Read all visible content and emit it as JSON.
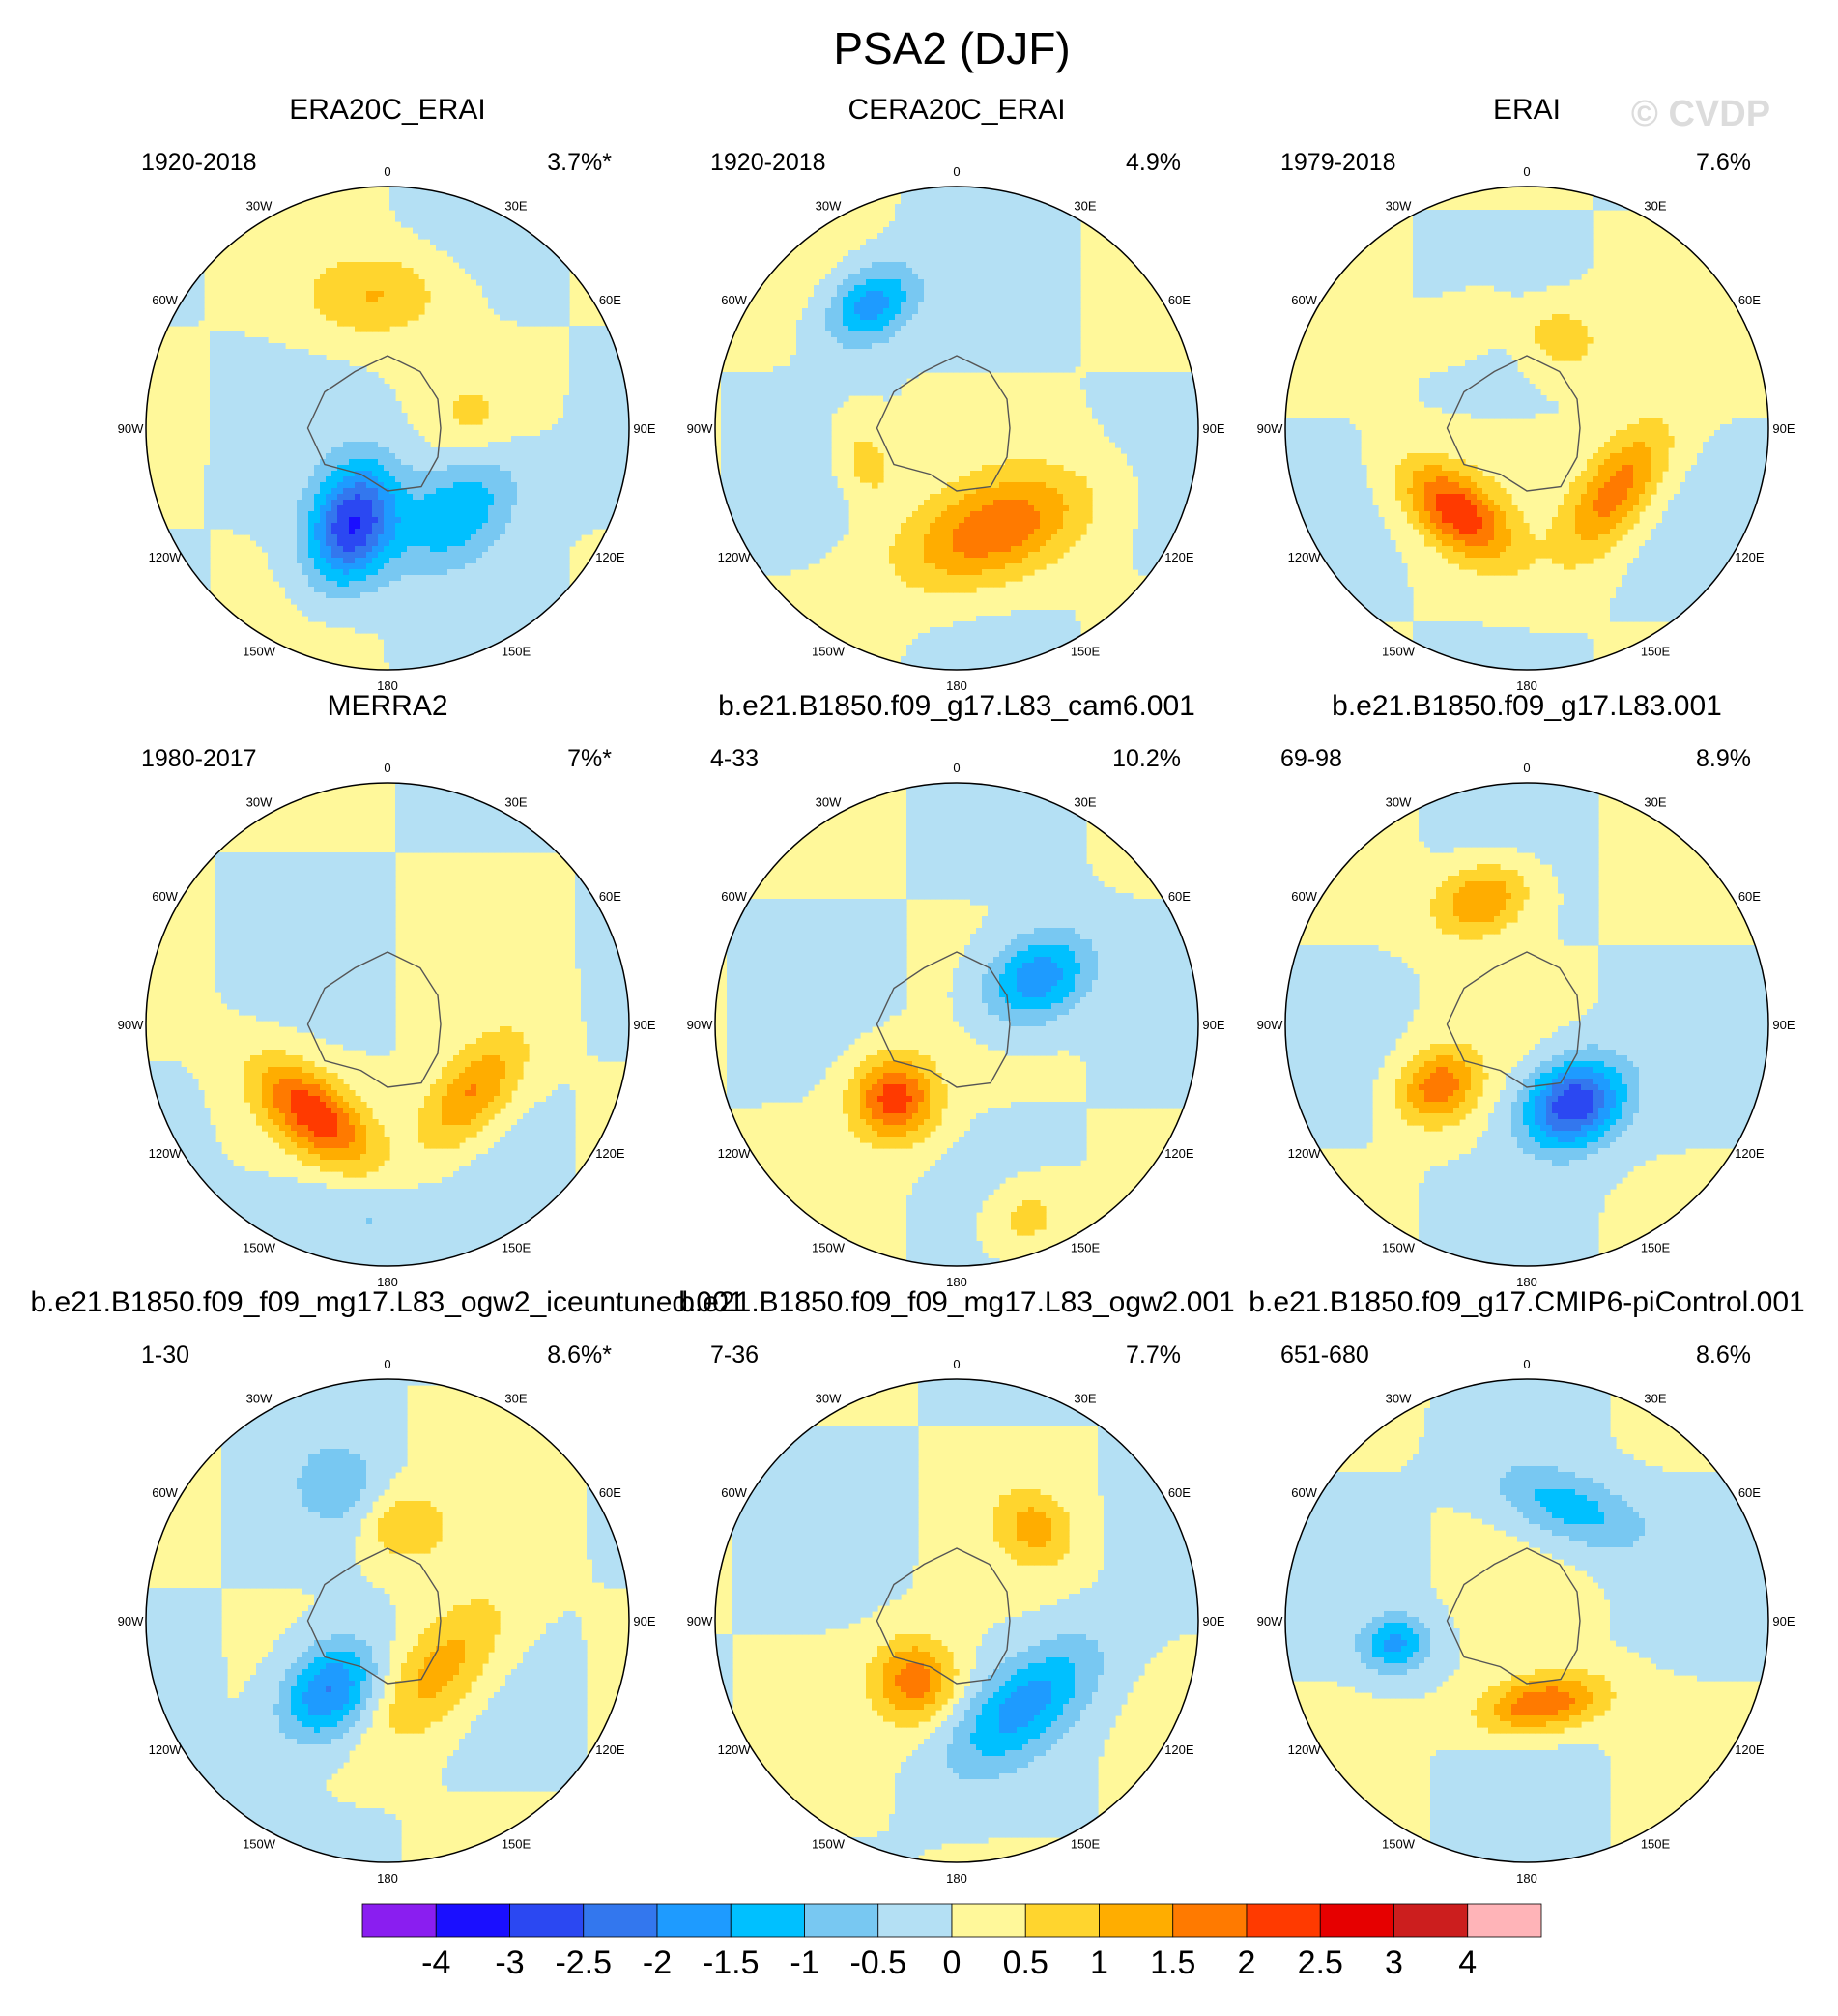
{
  "title": "PSA2 (DJF)",
  "watermark": "© CVDP",
  "lon_labels": [
    "0",
    "30E",
    "60E",
    "90E",
    "120E",
    "150E",
    "180",
    "150W",
    "120W",
    "90W",
    "60W",
    "30W"
  ],
  "panels": [
    {
      "name": "ERA20C_ERAI",
      "years": "1920-2018",
      "pct": "3.7%*",
      "blobs": [
        {
          "lon": 200,
          "colat": 0.42,
          "mag": -3.0,
          "sx": 0.12,
          "sy": 0.18
        },
        {
          "lon": 140,
          "colat": 0.45,
          "mag": -1.5,
          "sx": 0.2,
          "sy": 0.13
        },
        {
          "lon": 355,
          "colat": 0.55,
          "mag": 1.0,
          "sx": 0.2,
          "sy": 0.12
        },
        {
          "lon": 80,
          "colat": 0.35,
          "mag": 0.5,
          "sx": 0.1,
          "sy": 0.1
        }
      ]
    },
    {
      "name": "CERA20C_ERAI",
      "years": "1920-2018",
      "pct": "4.9%",
      "blobs": [
        {
          "lon": 325,
          "colat": 0.62,
          "mag": -1.8,
          "sx": 0.14,
          "sy": 0.1
        },
        {
          "lon": 160,
          "colat": 0.45,
          "mag": 1.8,
          "sx": 0.28,
          "sy": 0.14
        },
        {
          "lon": 250,
          "colat": 0.4,
          "mag": 0.8,
          "sx": 0.12,
          "sy": 0.08
        }
      ]
    },
    {
      "name": "ERAI",
      "years": "1979-2018",
      "pct": "7.6%",
      "blobs": [
        {
          "lon": 220,
          "colat": 0.45,
          "mag": 2.3,
          "sx": 0.18,
          "sy": 0.1
        },
        {
          "lon": 125,
          "colat": 0.45,
          "mag": 1.8,
          "sx": 0.22,
          "sy": 0.1
        },
        {
          "lon": 20,
          "colat": 0.4,
          "mag": 0.9,
          "sx": 0.12,
          "sy": 0.1
        },
        {
          "lon": 330,
          "colat": 0.5,
          "mag": 0.6,
          "sx": 0.12,
          "sy": 0.08
        }
      ]
    },
    {
      "name": "MERRA2",
      "years": "1980-2017",
      "pct": "7%*",
      "blobs": [
        {
          "lon": 220,
          "colat": 0.48,
          "mag": 2.3,
          "sx": 0.2,
          "sy": 0.1
        },
        {
          "lon": 130,
          "colat": 0.45,
          "mag": 1.6,
          "sx": 0.2,
          "sy": 0.1
        },
        {
          "lon": 190,
          "colat": 0.8,
          "mag": -0.6,
          "sx": 0.3,
          "sy": 0.1
        }
      ]
    },
    {
      "name": "b.e21.B1850.f09_g17.L83_cam6.001",
      "years": "4-33",
      "pct": "10.2%",
      "blobs": [
        {
          "lon": 60,
          "colat": 0.38,
          "mag": -2.0,
          "sx": 0.12,
          "sy": 0.16
        },
        {
          "lon": 220,
          "colat": 0.4,
          "mag": 2.3,
          "sx": 0.12,
          "sy": 0.12
        },
        {
          "lon": 160,
          "colat": 0.85,
          "mag": 0.8,
          "sx": 0.12,
          "sy": 0.1
        }
      ]
    },
    {
      "name": "b.e21.B1850.f09_g17.L83.001",
      "years": "69-98",
      "pct": "8.9%",
      "blobs": [
        {
          "lon": 340,
          "colat": 0.55,
          "mag": 1.6,
          "sx": 0.14,
          "sy": 0.1
        },
        {
          "lon": 150,
          "colat": 0.38,
          "mag": -3.0,
          "sx": 0.15,
          "sy": 0.12
        },
        {
          "lon": 235,
          "colat": 0.45,
          "mag": 1.8,
          "sx": 0.1,
          "sy": 0.12
        }
      ]
    },
    {
      "name": "b.e21.B1850.f09_f09_mg17.L83_ogw2_iceuntuned.001",
      "years": "1-30",
      "pct": "8.6%*",
      "blobs": [
        {
          "lon": 220,
          "colat": 0.38,
          "mag": -2.2,
          "sx": 0.12,
          "sy": 0.16
        },
        {
          "lon": 130,
          "colat": 0.3,
          "mag": 1.3,
          "sx": 0.25,
          "sy": 0.12
        },
        {
          "lon": 10,
          "colat": 0.4,
          "mag": 1.0,
          "sx": 0.12,
          "sy": 0.1
        },
        {
          "lon": 340,
          "colat": 0.6,
          "mag": -0.8,
          "sx": 0.12,
          "sy": 0.12
        }
      ]
    },
    {
      "name": "b.e21.B1850.f09_f09_mg17.L83_ogw2.001",
      "years": "7-36",
      "pct": "7.7%",
      "blobs": [
        {
          "lon": 215,
          "colat": 0.3,
          "mag": 1.8,
          "sx": 0.12,
          "sy": 0.12
        },
        {
          "lon": 140,
          "colat": 0.45,
          "mag": -1.6,
          "sx": 0.25,
          "sy": 0.12
        },
        {
          "lon": 40,
          "colat": 0.5,
          "mag": 1.1,
          "sx": 0.12,
          "sy": 0.1
        }
      ]
    },
    {
      "name": "b.e21.B1850.f09_g17.CMIP6-piControl.001",
      "years": "651-680",
      "pct": "8.6%",
      "blobs": [
        {
          "lon": 170,
          "colat": 0.35,
          "mag": 2.0,
          "sx": 0.18,
          "sy": 0.08
        },
        {
          "lon": 20,
          "colat": 0.5,
          "mag": -1.3,
          "sx": 0.22,
          "sy": 0.1
        },
        {
          "lon": 260,
          "colat": 0.55,
          "mag": -1.6,
          "sx": 0.08,
          "sy": 0.1
        }
      ]
    }
  ],
  "colorbar": {
    "colors": [
      "#8a1ef0",
      "#1a0fff",
      "#2b48f2",
      "#3377ee",
      "#1e9bff",
      "#00c0ff",
      "#78c8f2",
      "#b4e0f4",
      "#fff89a",
      "#ffd52e",
      "#ffad00",
      "#ff7a00",
      "#ff3a00",
      "#e60000",
      "#cc1e1e",
      "#ffb4b8"
    ],
    "labels": [
      "-4",
      "-3",
      "-2.5",
      "-2",
      "-1.5",
      "-1",
      "-0.5",
      "0",
      "0.5",
      "1",
      "1.5",
      "2",
      "2.5",
      "3",
      "4"
    ],
    "levels": [
      -4,
      -3,
      -2.5,
      -2,
      -1.5,
      -1,
      -0.5,
      0,
      0.5,
      1,
      1.5,
      2,
      2.5,
      3,
      4
    ]
  }
}
